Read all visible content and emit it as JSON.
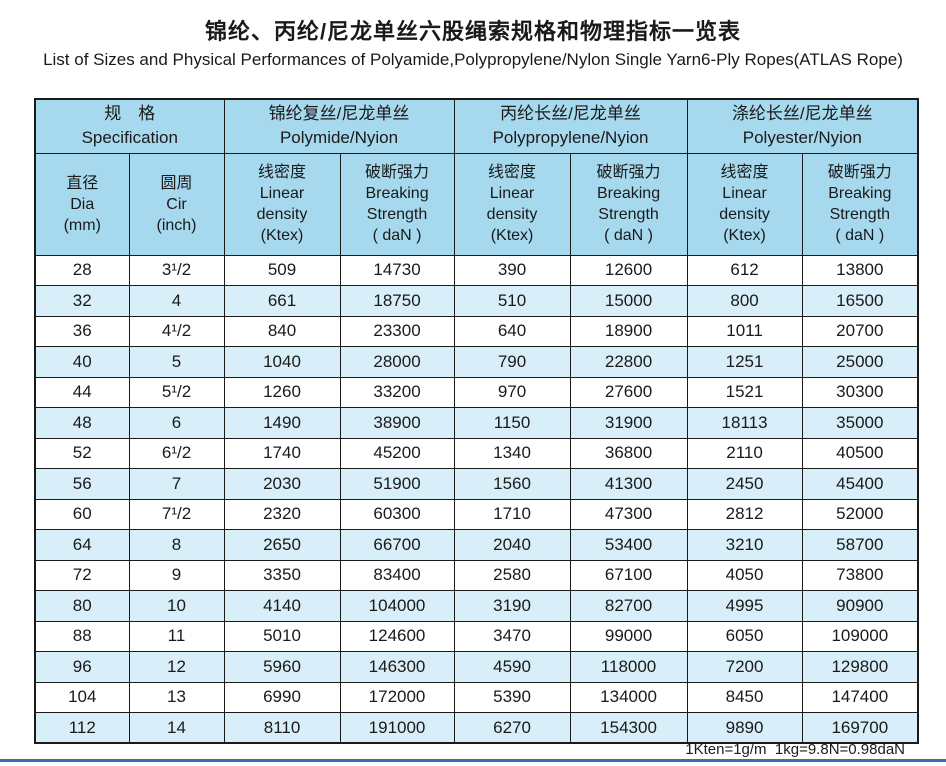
{
  "page": {
    "title_zh": "锦纶、丙纶/尼龙单丝六股绳索规格和物理指标一览表",
    "title_en": "List of Sizes and Physical Performances of Polyamide,Polypropylene/Nylon Single Yarn6-Ply Ropes(ATLAS Rope)",
    "footnote": "1Kten=1g/m  1kg=9.8N=0.98daN"
  },
  "colors": {
    "header_bg": "#a7d9ee",
    "row_alt_bg": "#d8eef8",
    "border": "#1a1a1a",
    "bottom_rule": "#3a70ad"
  },
  "table": {
    "group_headers": [
      "规　格\nSpecification",
      "锦纶复丝/尼龙单丝\nPolymide/Nyion",
      "丙纶长丝/尼龙单丝\nPolypropylene/Nyion",
      "涤纶长丝/尼龙单丝\nPolyester/Nyion"
    ],
    "column_headers": {
      "dia": "直径\nDia\n(mm)",
      "cir": "圆周\nCir\n(inch)",
      "linear_density": "线密度\nLinear\ndensity\n(Ktex)",
      "breaking_strength": "破断强力\nBreaking\nStrength\n( daN )"
    },
    "rows": [
      [
        "28",
        "3¹/2",
        "509",
        "14730",
        "390",
        "12600",
        "612",
        "13800"
      ],
      [
        "32",
        "4",
        "661",
        "18750",
        "510",
        "15000",
        "800",
        "16500"
      ],
      [
        "36",
        "4¹/2",
        "840",
        "23300",
        "640",
        "18900",
        "1011",
        "20700"
      ],
      [
        "40",
        "5",
        "1040",
        "28000",
        "790",
        "22800",
        "1251",
        "25000"
      ],
      [
        "44",
        "5¹/2",
        "1260",
        "33200",
        "970",
        "27600",
        "1521",
        "30300"
      ],
      [
        "48",
        "6",
        "1490",
        "38900",
        "1150",
        "31900",
        "18113",
        "35000"
      ],
      [
        "52",
        "6¹/2",
        "1740",
        "45200",
        "1340",
        "36800",
        "2110",
        "40500"
      ],
      [
        "56",
        "7",
        "2030",
        "51900",
        "1560",
        "41300",
        "2450",
        "45400"
      ],
      [
        "60",
        "7¹/2",
        "2320",
        "60300",
        "1710",
        "47300",
        "2812",
        "52000"
      ],
      [
        "64",
        "8",
        "2650",
        "66700",
        "2040",
        "53400",
        "3210",
        "58700"
      ],
      [
        "72",
        "9",
        "3350",
        "83400",
        "2580",
        "67100",
        "4050",
        "73800"
      ],
      [
        "80",
        "10",
        "4140",
        "104000",
        "3190",
        "82700",
        "4995",
        "90900"
      ],
      [
        "88",
        "11",
        "5010",
        "124600",
        "3470",
        "99000",
        "6050",
        "109000"
      ],
      [
        "96",
        "12",
        "5960",
        "146300",
        "4590",
        "118000",
        "7200",
        "129800"
      ],
      [
        "104",
        "13",
        "6990",
        "172000",
        "5390",
        "134000",
        "8450",
        "147400"
      ],
      [
        "112",
        "14",
        "8110",
        "191000",
        "6270",
        "154300",
        "9890",
        "169700"
      ]
    ]
  }
}
